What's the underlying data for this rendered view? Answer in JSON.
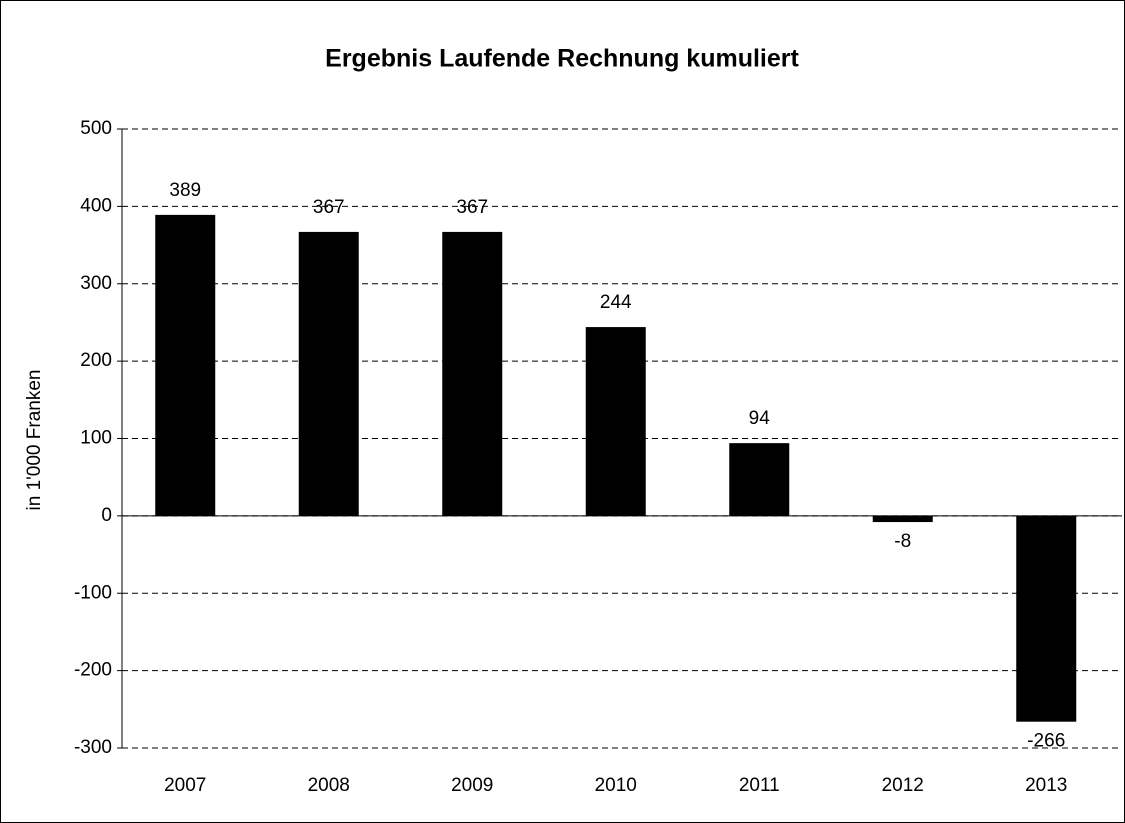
{
  "chart_data": {
    "type": "bar",
    "title": "Ergebnis Laufende Rechnung kumuliert",
    "y_label": "in 1'000 Franken",
    "categories": [
      "2007",
      "2008",
      "2009",
      "2010",
      "2011",
      "2012",
      "2013"
    ],
    "values": [
      389,
      367,
      367,
      244,
      94,
      -8,
      -266
    ],
    "color": "#000000",
    "ylim": [
      -300,
      500
    ],
    "yticks": [
      -300,
      -200,
      -100,
      0,
      100,
      200,
      300,
      400,
      500
    ],
    "grid": true
  }
}
